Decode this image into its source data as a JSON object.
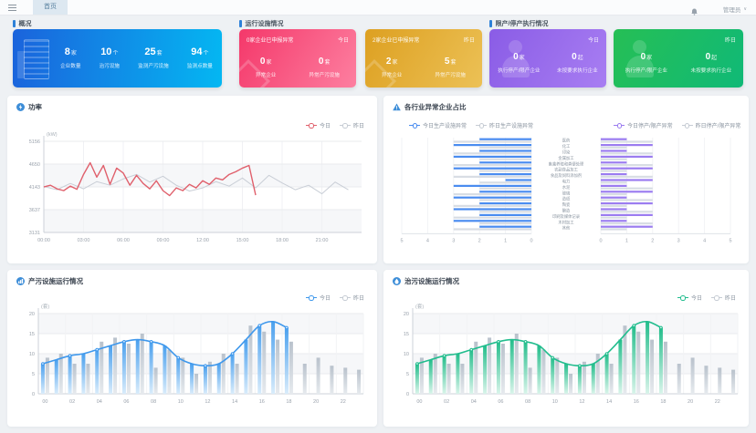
{
  "topbar": {
    "tab": "首页",
    "user": "管理员",
    "chevron": "∨"
  },
  "sections": {
    "overview": {
      "title": "概况"
    },
    "facility": {
      "title": "运行设施情况"
    },
    "limit": {
      "title": "限产/停产执行情况"
    }
  },
  "overview_card": {
    "stats": [
      {
        "value": "8",
        "unit": "家",
        "label": "企业数量"
      },
      {
        "value": "10",
        "unit": "个",
        "label": "治污设施"
      },
      {
        "value": "25",
        "unit": "套",
        "label": "监测产污设施"
      },
      {
        "value": "94",
        "unit": "个",
        "label": "监测点数量"
      }
    ]
  },
  "abnormal_cards": [
    {
      "title": "0家企业已申报异常",
      "tag": "今日",
      "stats": [
        {
          "value": "0",
          "unit": "家",
          "label": "异常企业"
        },
        {
          "value": "0",
          "unit": "套",
          "label": "异常产污设施"
        }
      ]
    },
    {
      "title": "2家企业已申报异常",
      "tag": "昨日",
      "stats": [
        {
          "value": "2",
          "unit": "家",
          "label": "异常企业"
        },
        {
          "value": "5",
          "unit": "套",
          "label": "异常产污设施"
        }
      ]
    }
  ],
  "limit_cards": [
    {
      "tag": "今日",
      "stats": [
        {
          "value": "0",
          "unit": "家",
          "label": "执行停产/限产企业"
        },
        {
          "value": "0",
          "unit": "起",
          "label": "未按要求执行企业"
        }
      ]
    },
    {
      "tag": "昨日",
      "stats": [
        {
          "value": "0",
          "unit": "家",
          "label": "执行停产/限产企业"
        },
        {
          "value": "0",
          "unit": "起",
          "label": "未按要求执行企业"
        }
      ]
    }
  ],
  "panels": {
    "power": {
      "title": "功率",
      "legend": [
        "今日",
        "昨日"
      ]
    },
    "industry": {
      "title": "各行业异常企业占比",
      "legend": [
        "今日生产设施异常",
        "昨日生产设施异常",
        "今日停产/限产异常",
        "昨日停产/限产异常"
      ]
    },
    "production": {
      "title": "产污设施运行情况",
      "legend": [
        "今日",
        "昨日"
      ]
    },
    "treatment": {
      "title": "治污设施运行情况",
      "legend": [
        "今日",
        "昨日"
      ]
    }
  },
  "colors": {
    "accent_blue": "#2e81d8",
    "today_red": "#e0606c",
    "yesterday_gray": "#c6ccd4",
    "industry_blue": "#4a8cf0",
    "industry_purple": "#9b7cf0",
    "combo_blue": "#3f98ec",
    "combo_green": "#22bd8e"
  },
  "chart_data": [
    {
      "id": "power",
      "type": "line",
      "title": "功率",
      "unit": "(kW)",
      "ylim": [
        3131,
        5156
      ],
      "yticks": [
        5156,
        4650,
        4143,
        3637,
        3131
      ],
      "xticks": [
        "00:00",
        "03:00",
        "06:00",
        "09:00",
        "12:00",
        "15:00",
        "18:00",
        "21:00"
      ],
      "x_domain_hours": 24,
      "grid": true,
      "legend_position": "top-right",
      "series": [
        {
          "name": "昨日",
          "color": "#c9ced6",
          "x_step": 1,
          "values": [
            4150,
            4080,
            4220,
            4100,
            4260,
            4180,
            4320,
            4420,
            4250,
            4380,
            4180,
            4050,
            4120,
            4260,
            4160,
            4340,
            4120,
            4400,
            4230,
            4080,
            4180,
            3990,
            4250,
            4080
          ]
        },
        {
          "name": "今日",
          "color": "#e0606c",
          "x_step": 0.5,
          "values": [
            4143,
            4180,
            4100,
            4060,
            4160,
            4090,
            4420,
            4680,
            4360,
            4620,
            4200,
            4560,
            4450,
            4180,
            4400,
            4220,
            4100,
            4280,
            4060,
            3950,
            4120,
            4060,
            4200,
            4120,
            4280,
            4200,
            4340,
            4300,
            4420,
            4480,
            4560,
            4620,
            3960
          ]
        }
      ]
    },
    {
      "id": "industry",
      "type": "bar-horizontal-mirror",
      "title": "各行业异常企业占比",
      "axis_max": 5,
      "axis_ticks_left": [
        5,
        4,
        3,
        2,
        1,
        0
      ],
      "axis_ticks_right": [
        0,
        1,
        2,
        3,
        4,
        5
      ],
      "categories": [
        "医药",
        "化工",
        "印染",
        "金属加工",
        "畜禽养殖和粪便处理",
        "农副食品加工",
        "食品及饲料添加剂",
        "电力",
        "水泥",
        "玻璃",
        "造纸",
        "陶瓷",
        "酿造",
        "印刷及媒体记录",
        "木材加工",
        "其他"
      ],
      "series": [
        {
          "name": "今日生产设施异常",
          "side": "left",
          "color": "#4a8cf0",
          "values": [
            2,
            3,
            2,
            3,
            2,
            3,
            2,
            1,
            3,
            2,
            3,
            2,
            3,
            2,
            3,
            2
          ]
        },
        {
          "name": "昨日生产设施异常",
          "side": "left",
          "color": "#d8dde4",
          "values": [
            3,
            2,
            3,
            2,
            3,
            2,
            3,
            2,
            2,
            3,
            2,
            3,
            2,
            3,
            2,
            3
          ]
        },
        {
          "name": "今日停产/限产异常",
          "side": "right",
          "color": "#9b7cf0",
          "values": [
            1,
            2,
            1,
            2,
            1,
            2,
            1,
            2,
            1,
            2,
            1,
            2,
            1,
            2,
            1,
            2
          ]
        },
        {
          "name": "昨日停产/限产异常",
          "side": "right",
          "color": "#d8dde4",
          "values": [
            2,
            1,
            2,
            1,
            2,
            1,
            2,
            1,
            2,
            1,
            2,
            1,
            2,
            1,
            2,
            1
          ]
        }
      ]
    },
    {
      "id": "production",
      "type": "bar+line",
      "title": "产污设施运行情况",
      "unit": "(套)",
      "ylim": [
        0,
        20
      ],
      "yticks": [
        20,
        15,
        10,
        5,
        0
      ],
      "x_labels": [
        "00",
        "02",
        "04",
        "06",
        "08",
        "10",
        "12",
        "14",
        "16",
        "18",
        "20",
        "22"
      ],
      "hours": 24,
      "colors": {
        "bar_top": "#4aa0ee",
        "bar_bottom": "#d9ecfb",
        "bar_yest_top": "#b9c2cc",
        "bar_yest_bottom": "#e6eaee",
        "line": "#3f98ec"
      },
      "series": [
        {
          "name": "今日",
          "values": [
            7.5,
            8.5,
            9.5,
            10,
            11,
            12,
            13,
            13.5,
            13,
            12,
            9,
            7.5,
            7,
            7.5,
            10,
            13.5,
            17,
            18,
            16.5
          ]
        },
        {
          "name": "昨日",
          "values": [
            9,
            10,
            7.5,
            7.5,
            13,
            14,
            12.5,
            15,
            6.5,
            11,
            9,
            5,
            8,
            10,
            7.5,
            17,
            15.5,
            13.5,
            13,
            7.5,
            9,
            7,
            6.5,
            6
          ]
        }
      ]
    },
    {
      "id": "treatment",
      "type": "bar+line",
      "title": "治污设施运行情况",
      "unit": "(套)",
      "ylim": [
        0,
        20
      ],
      "yticks": [
        20,
        15,
        10,
        5,
        0
      ],
      "x_labels": [
        "00",
        "02",
        "04",
        "06",
        "08",
        "10",
        "12",
        "14",
        "16",
        "18",
        "20",
        "22"
      ],
      "hours": 24,
      "colors": {
        "bar_top": "#23bd8b",
        "bar_bottom": "#d9f4ea",
        "bar_yest_top": "#b9c2cc",
        "bar_yest_bottom": "#e6eaee",
        "line": "#22bd8e"
      },
      "series": [
        {
          "name": "今日",
          "values": [
            7.5,
            8.5,
            9.5,
            10,
            11,
            12,
            13,
            13.5,
            13,
            12,
            9,
            7.5,
            7,
            7.5,
            10,
            13.5,
            17,
            18,
            16.5
          ]
        },
        {
          "name": "昨日",
          "values": [
            9,
            10,
            7.5,
            7.5,
            13,
            14,
            12.5,
            15,
            6.5,
            11,
            9,
            5,
            8,
            10,
            7.5,
            17,
            15.5,
            13.5,
            13,
            7.5,
            9,
            7,
            6.5,
            6
          ]
        }
      ]
    }
  ]
}
